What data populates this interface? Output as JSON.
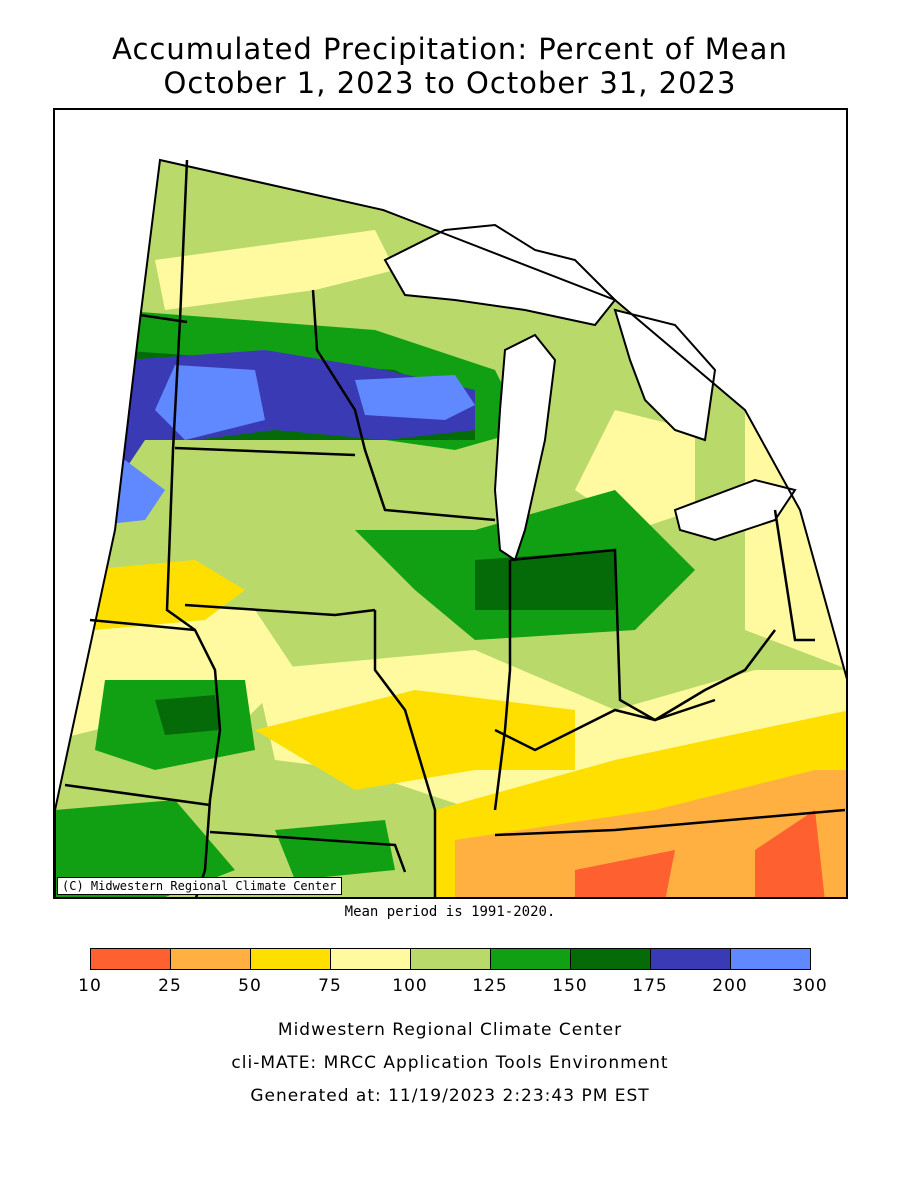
{
  "title": {
    "line1": "Accumulated Precipitation: Percent of Mean",
    "line2": "October 1, 2023 to October 31, 2023"
  },
  "map": {
    "copyright": "(C) Midwestern Regional Climate Center",
    "mean_period": "Mean period is 1991-2020."
  },
  "legend": {
    "bins": [
      {
        "from": 10,
        "to": 25,
        "color": "#ff6030"
      },
      {
        "from": 25,
        "to": 50,
        "color": "#ffb040"
      },
      {
        "from": 50,
        "to": 75,
        "color": "#ffdf00"
      },
      {
        "from": 75,
        "to": 100,
        "color": "#fffaa0"
      },
      {
        "from": 100,
        "to": 125,
        "color": "#b9da6a"
      },
      {
        "from": 125,
        "to": 150,
        "color": "#11a013"
      },
      {
        "from": 150,
        "to": 175,
        "color": "#056b08"
      },
      {
        "from": 175,
        "to": 200,
        "color": "#3a3ab5"
      },
      {
        "from": 200,
        "to": 300,
        "color": "#6088ff"
      }
    ],
    "ticks": [
      "10",
      "25",
      "50",
      "75",
      "100",
      "125",
      "150",
      "175",
      "200",
      "300"
    ]
  },
  "footer": {
    "line1": "Midwestern Regional Climate Center",
    "line2": "cli-MATE: MRCC Application Tools Environment",
    "line3": "Generated at: 11/19/2023 2:23:43 PM EST"
  }
}
